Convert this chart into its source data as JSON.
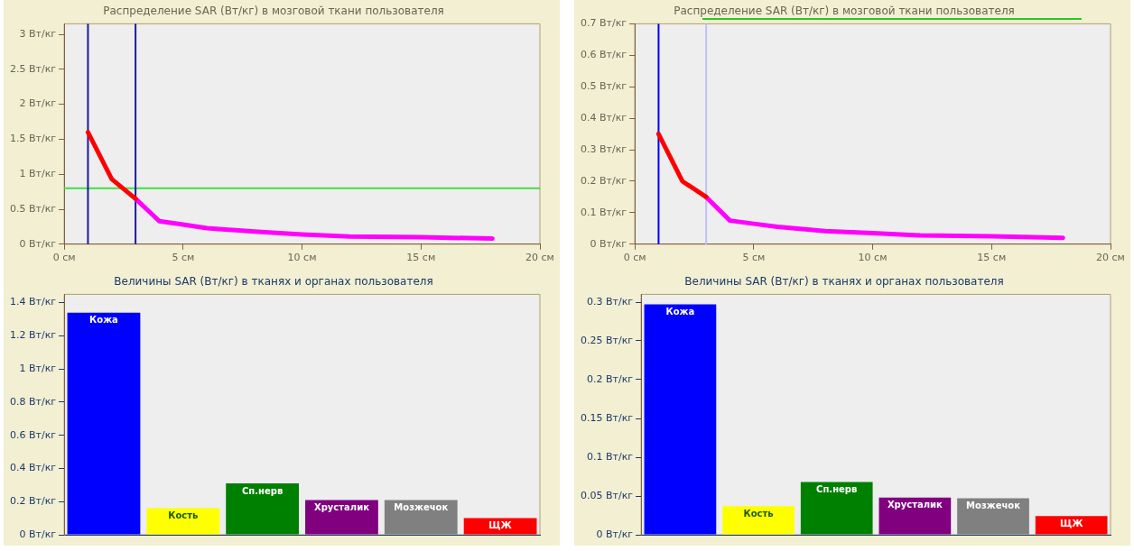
{
  "chart_data": [
    {
      "type": "line",
      "title": "Распределение SAR (Вт/кг) в мозговой ткани пользователя",
      "xlim": [
        0,
        20
      ],
      "ylim": [
        0,
        3.15
      ],
      "xticks": [
        {
          "value": 0,
          "label": "0 см"
        },
        {
          "value": 5,
          "label": "5 см"
        },
        {
          "value": 10,
          "label": "10 см"
        },
        {
          "value": 15,
          "label": "15 см"
        },
        {
          "value": 20,
          "label": "20 см"
        }
      ],
      "yticks": [
        {
          "value": 0,
          "label": "0 Вт/кг"
        },
        {
          "value": 0.5,
          "label": "0.5 Вт/кг"
        },
        {
          "value": 1,
          "label": "1 Вт/кг"
        },
        {
          "value": 1.5,
          "label": "1.5 Вт/кг"
        },
        {
          "value": 2,
          "label": "2 Вт/кг"
        },
        {
          "value": 2.5,
          "label": "2.5 Вт/кг"
        },
        {
          "value": 3,
          "label": "3 Вт/кг"
        }
      ],
      "series": [
        {
          "color": "#ff0000",
          "x": [
            1,
            2,
            3
          ],
          "values": [
            1.6,
            0.93,
            0.65
          ]
        },
        {
          "color": "#ff00ff",
          "x": [
            3,
            4,
            5,
            6,
            8,
            10,
            12,
            15,
            18
          ],
          "values": [
            0.65,
            0.33,
            0.28,
            0.23,
            0.18,
            0.14,
            0.11,
            0.1,
            0.08
          ]
        }
      ],
      "ref_lines": [
        {
          "axis": "y",
          "value": 0.8,
          "color": "#44dd44"
        },
        {
          "axis": "x",
          "value": 1,
          "color": "#1a1a99"
        },
        {
          "axis": "x",
          "value": 3,
          "color": "#1a1a99"
        }
      ],
      "marker": "none",
      "grid": false,
      "legend": false
    },
    {
      "type": "line",
      "title": "Распределение SAR (Вт/кг) в мозговой ткани пользователя",
      "xlim": [
        0,
        20
      ],
      "ylim": [
        0,
        0.7
      ],
      "xticks": [
        {
          "value": 0,
          "label": "0 см"
        },
        {
          "value": 5,
          "label": "5 см"
        },
        {
          "value": 10,
          "label": "10 см"
        },
        {
          "value": 15,
          "label": "15 см"
        },
        {
          "value": 20,
          "label": "20 см"
        }
      ],
      "yticks": [
        {
          "value": 0,
          "label": "0 Вт/кг"
        },
        {
          "value": 0.1,
          "label": "0.1 Вт/кг"
        },
        {
          "value": 0.2,
          "label": "0.2 Вт/кг"
        },
        {
          "value": 0.3,
          "label": "0.3 Вт/кг"
        },
        {
          "value": 0.4,
          "label": "0.4 Вт/кг"
        },
        {
          "value": 0.5,
          "label": "0.5 Вт/кг"
        },
        {
          "value": 0.6,
          "label": "0.6 Вт/кг"
        },
        {
          "value": 0.7,
          "label": "0.7 Вт/кг"
        }
      ],
      "series": [
        {
          "color": "#ff0000",
          "x": [
            1,
            2,
            3
          ],
          "values": [
            0.35,
            0.2,
            0.15
          ]
        },
        {
          "color": "#ff00ff",
          "x": [
            3,
            4,
            5,
            6,
            8,
            10,
            12,
            15,
            18
          ],
          "values": [
            0.15,
            0.075,
            0.065,
            0.055,
            0.042,
            0.035,
            0.028,
            0.025,
            0.02
          ]
        }
      ],
      "ref_lines": [
        {
          "axis": "x",
          "value": 1,
          "color": "#0000ff"
        },
        {
          "axis": "x",
          "value": 3,
          "color": "#c0c0ff"
        }
      ],
      "marker": "none",
      "grid": false,
      "legend": false
    },
    {
      "type": "bar",
      "title": "Величины SAR (Вт/кг) в тканях и органах пользователя",
      "ylim": [
        0,
        1.45
      ],
      "categories": [
        "Кожа",
        "Кость",
        "Сп.нерв",
        "Хрусталик",
        "Мозжечок",
        "ЩЖ"
      ],
      "values": [
        1.34,
        0.16,
        0.31,
        0.21,
        0.21,
        0.1
      ],
      "colors": [
        "#0000ff",
        "#ffff00",
        "#008000",
        "#800080",
        "#808080",
        "#ff0000"
      ],
      "yticks": [
        {
          "value": 0,
          "label": "0 Вт/кг"
        },
        {
          "value": 0.2,
          "label": "0.2 Вт/кг"
        },
        {
          "value": 0.4,
          "label": "0.4 Вт/кг"
        },
        {
          "value": 0.6,
          "label": "0.6 Вт/кг"
        },
        {
          "value": 0.8,
          "label": "0.8 Вт/кг"
        },
        {
          "value": 1,
          "label": "1 Вт/кг"
        },
        {
          "value": 1.2,
          "label": "1.2 Вт/кг"
        },
        {
          "value": 1.4,
          "label": "1.4 Вт/кг"
        }
      ],
      "tick_labels": "y",
      "grid": false,
      "legend": false
    },
    {
      "type": "bar",
      "title": "Величины SAR (Вт/кг) в тканях и органах пользователя",
      "ylim": [
        0,
        0.31
      ],
      "categories": [
        "Кожа",
        "Кость",
        "Сп.нерв",
        "Хрусталик",
        "Мозжечок",
        "ЩЖ"
      ],
      "values": [
        0.297,
        0.037,
        0.068,
        0.048,
        0.047,
        0.024
      ],
      "colors": [
        "#0000ff",
        "#ffff00",
        "#008000",
        "#800080",
        "#808080",
        "#ff0000"
      ],
      "yticks": [
        {
          "value": 0,
          "label": "0 Вт/кг"
        },
        {
          "value": 0.05,
          "label": "0.05 Вт/кг"
        },
        {
          "value": 0.1,
          "label": "0.1 Вт/кг"
        },
        {
          "value": 0.15,
          "label": "0.15 Вт/кг"
        },
        {
          "value": 0.2,
          "label": "0.2 Вт/кг"
        },
        {
          "value": 0.25,
          "label": "0.25 Вт/кг"
        },
        {
          "value": 0.3,
          "label": "0.3 Вт/кг"
        }
      ],
      "tick_labels": "y",
      "grid": false,
      "legend": false
    }
  ]
}
